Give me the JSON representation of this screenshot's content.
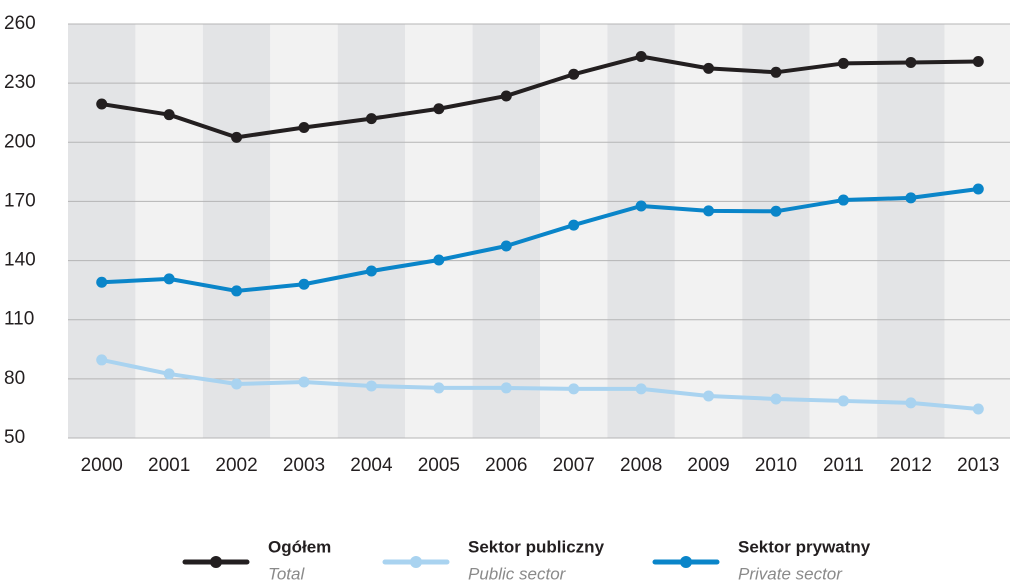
{
  "chart_data": {
    "type": "line",
    "categories": [
      "2000",
      "2001",
      "2002",
      "2003",
      "2004",
      "2005",
      "2006",
      "2007",
      "2008",
      "2009",
      "2010",
      "2011",
      "2012",
      "2013"
    ],
    "series": [
      {
        "name": "Ogółem",
        "name_en": "Total",
        "color": "#231f20",
        "values": [
          219.4,
          214,
          202.5,
          207.5,
          212,
          217,
          223.5,
          234.5,
          243.5,
          237.5,
          235.5,
          240,
          240.5,
          241
        ]
      },
      {
        "name": "Sektor publiczny",
        "name_en": "Public sector",
        "color": "#a9d3f0",
        "values": [
          89.6,
          82.5,
          77.4,
          78.4,
          76.4,
          75.4,
          75.4,
          74.9,
          74.9,
          71.3,
          69.8,
          68.8,
          67.8,
          64.7
        ]
      },
      {
        "name": "Sektor prywatny",
        "name_en": "Private sector",
        "color": "#0a85c9",
        "values": [
          129,
          130.7,
          124.6,
          128,
          134.7,
          140.3,
          147.4,
          158,
          167.7,
          165.2,
          165,
          170.7,
          171.8,
          176.3
        ]
      }
    ],
    "ylim": [
      50,
      260
    ],
    "yticks": [
      50,
      80,
      110,
      140,
      170,
      200,
      230,
      260
    ],
    "grid": true,
    "band_colors": [
      "#e3e4e6",
      "#f2f2f2"
    ],
    "legend": "bottom"
  }
}
